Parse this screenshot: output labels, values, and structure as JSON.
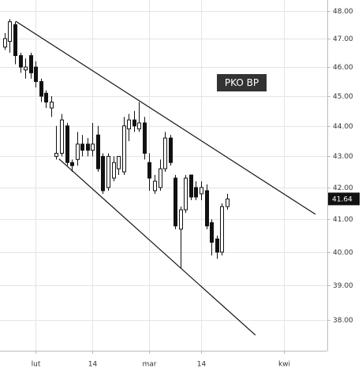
{
  "chart_data": {
    "type": "candlestick",
    "label": "PKO BP",
    "log_y": true,
    "grid": true,
    "up_color": "#ffffff",
    "down_color": "#111111",
    "x": [
      0,
      1,
      2,
      3,
      4,
      5,
      6,
      7,
      8,
      9,
      10,
      11,
      12,
      13,
      14,
      15,
      16,
      17,
      18,
      19,
      20,
      21,
      22,
      23,
      24,
      25,
      26,
      27,
      28,
      29,
      30,
      31,
      32,
      33,
      34,
      35,
      36,
      37,
      38,
      39,
      40,
      41,
      42,
      43
    ],
    "open": [
      46.7,
      46.9,
      47.5,
      46.4,
      45.9,
      46.4,
      46.0,
      45.5,
      45.1,
      44.6,
      43.0,
      43.1,
      44.0,
      42.8,
      42.9,
      43.4,
      43.4,
      43.2,
      43.7,
      43.0,
      42.0,
      42.3,
      42.6,
      42.5,
      43.9,
      44.2,
      43.9,
      44.1,
      42.8,
      41.9,
      42.0,
      42.6,
      43.6,
      42.3,
      40.7,
      41.3,
      42.4,
      42.0,
      41.8,
      41.9,
      40.9,
      40.4,
      40.0,
      41.4
    ],
    "high": [
      47.2,
      47.7,
      47.6,
      46.5,
      46.3,
      46.5,
      46.2,
      45.6,
      45.2,
      45.0,
      44.0,
      44.4,
      44.1,
      42.9,
      43.8,
      43.7,
      43.6,
      44.1,
      44.0,
      43.1,
      43.1,
      43.0,
      43.0,
      44.3,
      44.4,
      44.5,
      44.8,
      44.3,
      43.1,
      42.4,
      42.9,
      43.8,
      43.7,
      42.4,
      41.4,
      42.4,
      42.4,
      42.2,
      42.2,
      42.1,
      41.0,
      40.5,
      41.5,
      41.8
    ],
    "low": [
      46.6,
      46.5,
      46.1,
      45.8,
      45.6,
      45.6,
      45.3,
      44.8,
      44.6,
      44.3,
      42.9,
      43.0,
      42.7,
      42.5,
      42.7,
      43.0,
      43.0,
      43.0,
      42.5,
      41.8,
      41.9,
      42.2,
      42.4,
      42.4,
      43.5,
      43.8,
      43.8,
      42.9,
      41.9,
      41.8,
      41.9,
      42.5,
      42.7,
      40.7,
      39.5,
      41.2,
      41.6,
      41.6,
      41.6,
      40.7,
      39.9,
      39.8,
      39.9,
      41.3
    ],
    "close": [
      47.0,
      47.6,
      46.4,
      46.0,
      46.0,
      45.8,
      45.5,
      45.0,
      44.8,
      44.8,
      43.1,
      44.2,
      42.8,
      42.7,
      43.4,
      43.2,
      43.2,
      43.4,
      42.6,
      41.9,
      43.0,
      42.8,
      43.0,
      44.0,
      44.2,
      44.0,
      44.1,
      43.1,
      42.3,
      42.2,
      42.6,
      43.6,
      42.8,
      40.8,
      41.3,
      42.3,
      41.7,
      41.7,
      42.0,
      40.8,
      40.3,
      40.0,
      41.4,
      41.64
    ],
    "xlim": [
      -0.9,
      62.4
    ],
    "ylim": [
      37.13,
      48.39
    ],
    "xticks": [
      {
        "value": 6,
        "label": "lut"
      },
      {
        "value": 17,
        "label": "14"
      },
      {
        "value": 28,
        "label": "mar"
      },
      {
        "value": 38,
        "label": "14"
      },
      {
        "value": 54,
        "label": "kwi"
      }
    ],
    "yticks": [
      {
        "value": 38,
        "label": "38.00"
      },
      {
        "value": 39,
        "label": "39.00"
      },
      {
        "value": 40,
        "label": "40.00"
      },
      {
        "value": 41,
        "label": "41.00"
      },
      {
        "value": 42,
        "label": "42.00"
      },
      {
        "value": 43,
        "label": "43.00"
      },
      {
        "value": 44,
        "label": "44.00"
      },
      {
        "value": 45,
        "label": "45.00"
      },
      {
        "value": 46,
        "label": "46.00"
      },
      {
        "value": 47,
        "label": "47.00"
      },
      {
        "value": 48,
        "label": "48.00"
      }
    ],
    "trendlines": [
      {
        "color": "#111111",
        "x": [
          2.15,
          60.1
        ],
        "y": [
          47.62,
          41.16
        ]
      },
      {
        "color": "#111111",
        "x": [
          10.5,
          48.5
        ],
        "y": [
          42.92,
          37.57
        ]
      }
    ]
  }
}
